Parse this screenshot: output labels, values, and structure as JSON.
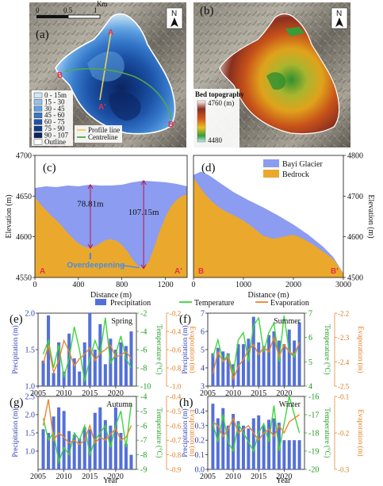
{
  "map_a": {
    "letter": "(a)",
    "scalebar_ticks": [
      "0",
      "0.5",
      "1"
    ],
    "scalebar_unit": "Km",
    "north": "N",
    "legend": [
      {
        "label": "0 - 15m",
        "color": "#cfe6f7"
      },
      {
        "label": "15 - 30",
        "color": "#93c3ec"
      },
      {
        "label": "30 - 45",
        "color": "#5fa0df"
      },
      {
        "label": "45 - 60",
        "color": "#3578c9"
      },
      {
        "label": "60 - 75",
        "color": "#1d53a8"
      },
      {
        "label": "75 - 90",
        "color": "#123b86"
      },
      {
        "label": "90 - 107",
        "color": "#0b2461"
      },
      {
        "label": "Outline",
        "color": "#ffffff"
      }
    ],
    "legend2": [
      {
        "label": "Profile line",
        "color": "#e6d05a"
      },
      {
        "label": "Centreline",
        "color": "#4ea84a"
      }
    ],
    "points": {
      "A": "A",
      "A_prime": "A'",
      "B": "B",
      "B_prime": "B'"
    }
  },
  "map_b": {
    "letter": "(b)",
    "north": "N",
    "colorbar_title": "Bed topography",
    "colorbar_max": "4760 (m)",
    "colorbar_min": "4480"
  },
  "chart_data": [
    {
      "type": "area",
      "panel": "(c)",
      "xlabel": "Distance (m)",
      "ylabel": "Elevation (m)",
      "xlim": [
        0,
        1400
      ],
      "ylim": [
        4550,
        4700
      ],
      "xticks": [
        "0",
        "400",
        "800",
        "1200"
      ],
      "yticks": [
        "4550",
        "4600",
        "4650",
        "4700"
      ],
      "surface": {
        "x": [
          0,
          100,
          200,
          300,
          400,
          500,
          600,
          700,
          800,
          900,
          1000,
          1100,
          1200,
          1300,
          1400
        ],
        "y": [
          4660,
          4662,
          4661,
          4663,
          4662,
          4664,
          4663,
          4663,
          4664,
          4667,
          4669,
          4668,
          4667,
          4665,
          4662
        ]
      },
      "bedrock": {
        "x": [
          0,
          50,
          100,
          150,
          200,
          250,
          300,
          350,
          400,
          450,
          500,
          550,
          600,
          650,
          700,
          750,
          800,
          850,
          900,
          950,
          1000,
          1050,
          1100,
          1150,
          1200,
          1250,
          1300,
          1350,
          1400
        ],
        "y": [
          4649,
          4640,
          4633,
          4626,
          4620,
          4613,
          4605,
          4598,
          4592,
          4588,
          4586,
          4588,
          4592,
          4596,
          4597,
          4595,
          4590,
          4582,
          4572,
          4564,
          4561,
          4570,
          4588,
          4608,
          4624,
          4637,
          4645,
          4650,
          4652
        ]
      },
      "annotations": [
        {
          "text": "78.81m",
          "x": 510,
          "y_top": 4664,
          "y_bottom": 4586
        },
        {
          "text": "107.15m",
          "x": 1000,
          "y_top": 4669,
          "y_bottom": 4561
        }
      ],
      "overdeepening": "Overdeepening",
      "endpoints": [
        "A",
        "A'"
      ]
    },
    {
      "type": "area",
      "panel": "(d)",
      "xlabel": "Distance (m)",
      "ylabel": "Elevation (m)",
      "xlim": [
        0,
        3000
      ],
      "ylim": [
        4500,
        4800
      ],
      "xticks": [
        "0",
        "1000",
        "2000",
        "3000"
      ],
      "yticks": [
        "4500",
        "4600",
        "4700",
        "4800"
      ],
      "legend": [
        {
          "label": "Bayi Glacier",
          "color": "#8c9cf0"
        },
        {
          "label": "Bedrock",
          "color": "#eaa92c"
        }
      ],
      "surface": {
        "x": [
          0,
          150,
          300,
          500,
          800,
          1100,
          1400,
          1700,
          2000,
          2300,
          2600,
          2800,
          2900,
          3000
        ],
        "y": [
          4752,
          4760,
          4752,
          4735,
          4710,
          4690,
          4672,
          4652,
          4630,
          4605,
          4575,
          4550,
          4530,
          4510
        ]
      },
      "bedrock": {
        "x": [
          0,
          150,
          300,
          450,
          600,
          800,
          1000,
          1200,
          1400,
          1600,
          1800,
          2000,
          2200,
          2400,
          2600,
          2800,
          2900,
          3000
        ],
        "y": [
          4745,
          4718,
          4695,
          4678,
          4665,
          4653,
          4640,
          4622,
          4602,
          4595,
          4600,
          4605,
          4595,
          4580,
          4563,
          4545,
          4528,
          4510
        ]
      },
      "endpoints": [
        "B",
        "B'"
      ]
    },
    {
      "type": "bar",
      "panels_legend": [
        {
          "label": "Precipitation",
          "color": "#5470d8"
        },
        {
          "label": "Temperature",
          "color": "#3dd63d"
        },
        {
          "label": "Evaporation",
          "color": "#e8872e"
        }
      ],
      "years": [
        2006,
        2007,
        2008,
        2009,
        2010,
        2011,
        2012,
        2013,
        2014,
        2015,
        2016,
        2017,
        2018,
        2019,
        2020,
        2021,
        2022,
        2023
      ],
      "xticks": [
        "2005",
        "2010",
        "2015",
        "2020"
      ],
      "xlabel": "Year",
      "panels": [
        {
          "panel": "(e)",
          "season": "Spring",
          "ylabel_left": "Precipitation (m)",
          "ylabel_right1": "Temperature (°C)",
          "ylabel_right2": "Evaporation (m)",
          "left_lim": [
            1.0,
            2.0
          ],
          "left_ticks": [
            "1.0",
            "1.5",
            "2.0"
          ],
          "temp_lim": [
            -10,
            -2
          ],
          "temp_ticks": [
            "-10",
            "-8",
            "-6",
            "-4",
            "-2"
          ],
          "evap_lim": [
            -1.0,
            -0.2
          ],
          "evap_ticks": [
            "-1.0",
            "-0.8",
            "-0.6",
            "-0.4",
            "-0.2"
          ],
          "precip": [
            1.35,
            1.97,
            1.18,
            1.6,
            1.2,
            1.72,
            1.38,
            1.2,
            1.6,
            2.0,
            1.5,
            1.85,
            1.3,
            1.65,
            1.5,
            1.6,
            1.55,
            1.75
          ],
          "temp": [
            -6.5,
            -5,
            -8,
            -5.5,
            -9,
            -7,
            -3.5,
            -6,
            -9.5,
            -7,
            -5,
            -6.5,
            -2.5,
            -7.5,
            -6.5,
            -4.5,
            -7,
            -8
          ],
          "evap": [
            -0.75,
            -0.55,
            -0.85,
            -0.72,
            -0.5,
            -0.62,
            -0.78,
            -0.7,
            -0.65,
            -0.58,
            -0.72,
            -0.64,
            -0.6,
            -0.55,
            -0.68,
            -0.66,
            -0.62,
            -0.7
          ]
        },
        {
          "panel": "(f)",
          "season": "Summer",
          "ylabel_left": "Precipitation (m)",
          "ylabel_right1": "Temperature (°C)",
          "ylabel_right2": "Evaporation (m)",
          "left_lim": [
            3,
            7
          ],
          "left_ticks": [
            "3",
            "4",
            "5",
            "6",
            "7"
          ],
          "temp_lim": [
            4,
            7
          ],
          "temp_ticks": [
            "4",
            "5",
            "6",
            "7"
          ],
          "evap_lim": [
            -2.5,
            -2.2
          ],
          "evap_ticks": [
            "-2.5",
            "-2.4",
            "-2.3",
            "-2.2"
          ],
          "precip": [
            4.8,
            5.1,
            4.9,
            4.8,
            4.2,
            5.3,
            5.3,
            5.6,
            6.8,
            5.4,
            5.2,
            5.8,
            6.0,
            5.5,
            5.3,
            6.1,
            5.5,
            6.5
          ],
          "temp": [
            5.2,
            5.9,
            5.0,
            5.3,
            4.5,
            5.9,
            6.2,
            5.0,
            6.5,
            6.8,
            5.4,
            6.2,
            6.6,
            5.0,
            6.9,
            5.4,
            5.2,
            5.8
          ],
          "evap": [
            -2.45,
            -2.36,
            -2.4,
            -2.38,
            -2.47,
            -2.42,
            -2.39,
            -2.35,
            -2.33,
            -2.37,
            -2.34,
            -2.36,
            -2.3,
            -2.38,
            -2.33,
            -2.36,
            -2.37,
            -2.32
          ]
        },
        {
          "panel": "(g)",
          "season": "Autumn",
          "ylabel_left": "Precipitation (m)",
          "ylabel_right1": "Temperature (°C)",
          "ylabel_right2": "Evaporation (m)",
          "left_lim": [
            0.5,
            2.5
          ],
          "left_ticks": [
            "1.0",
            "1.5",
            "2.0",
            "2.5"
          ],
          "temp_lim": [
            -9,
            -4
          ],
          "temp_ticks": [
            "-9",
            "-8",
            "-7",
            "-6",
            "-5",
            "-4"
          ],
          "evap_lim": [
            -0.9,
            -0.4
          ],
          "evap_ticks": [
            "-0.9",
            "-0.8",
            "-0.7",
            "-0.6",
            "-0.5",
            "-0.4"
          ],
          "precip": [
            1.6,
            1.5,
            1.95,
            2.2,
            2.1,
            1.55,
            1.45,
            1.35,
            1.65,
            1.6,
            2.05,
            2.2,
            1.85,
            1.7,
            2.2,
            1.5,
            1.2,
            0.9
          ],
          "temp": [
            -5.5,
            -7,
            -6.5,
            -8.5,
            -7.5,
            -8,
            -6.5,
            -7,
            -6,
            -8,
            -7,
            -6.5,
            -6,
            -7.5,
            -6,
            -5,
            -7.5,
            -4.5
          ],
          "evap": [
            -0.6,
            -0.42,
            -0.7,
            -0.65,
            -0.68,
            -0.72,
            -0.7,
            -0.73,
            -0.7,
            -0.6,
            -0.72,
            -0.68,
            -0.7,
            -0.66,
            -0.62,
            -0.7,
            -0.68,
            -0.6
          ]
        },
        {
          "panel": "(h)",
          "season": "Winter",
          "ylabel_left": "Precipitation (m)",
          "ylabel_right1": "Temperature (°C)",
          "ylabel_right2": "Evaporation (m)",
          "left_lim": [
            0.0,
            0.5
          ],
          "left_ticks": [
            "0.0",
            "0.1",
            "0.2",
            "0.3",
            "0.4"
          ],
          "temp_lim": [
            -20,
            -16
          ],
          "temp_ticks": [
            "-20",
            "-19",
            "-18",
            "-17",
            "-16"
          ],
          "evap_lim": [
            -0.3,
            -0.1
          ],
          "evap_ticks": [
            "-0.3",
            "-0.2",
            "-0.1"
          ],
          "precip": [
            0.45,
            0.35,
            0.42,
            0.3,
            0.38,
            0.33,
            0.3,
            0.28,
            0.35,
            0.37,
            0.3,
            0.34,
            0.35,
            0.32,
            0.2,
            0.2,
            0.2,
            0.2
          ],
          "temp": [
            -17.5,
            -18.5,
            -17,
            -18.5,
            -19,
            -17.5,
            -18,
            -18.5,
            -19,
            -18,
            -17.5,
            -18.5,
            -16.5,
            -19,
            -17.5,
            -16,
            -17,
            -18
          ],
          "evap": [
            -0.17,
            -0.18,
            -0.21,
            -0.19,
            -0.16,
            -0.2,
            -0.19,
            -0.18,
            -0.2,
            -0.22,
            -0.2,
            -0.19,
            -0.21,
            -0.18,
            -0.2,
            -0.17,
            -0.16,
            -0.15
          ]
        }
      ]
    }
  ]
}
